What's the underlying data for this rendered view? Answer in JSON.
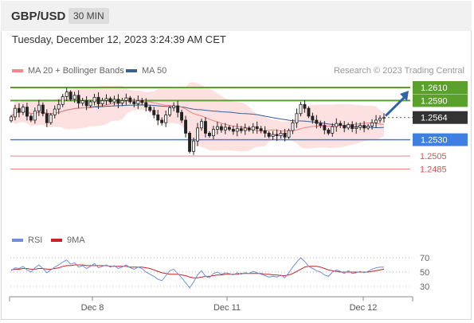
{
  "header": {
    "symbol": "GBP/USD",
    "timeframe": "30 MIN"
  },
  "timestamp": "Tuesday, December 12, 2023 3:24:39 AM CET",
  "legend": {
    "ma_bb": "MA 20 + Bollinger Bands",
    "ma50": "MA 50",
    "credit": "Research © 2023 Trading Central",
    "rsi": "RSI",
    "ma9": "9MA"
  },
  "colors": {
    "resistance": "#5aa02c",
    "support": "#3f7fe0",
    "support_minor": "#e05050",
    "bollinger": "#fde0e0",
    "ma20": "#f08080",
    "ma50": "#3a5f9a",
    "candle_up": "#ffffff",
    "candle_down": "#222222",
    "rsi": "#6f8fd8",
    "rsi_ma": "#cc2222",
    "arrow": "#2f62a8",
    "current_price": "#333333"
  },
  "chart_data": [
    {
      "type": "candlestick",
      "title": "GBP/USD 30 MIN",
      "x_ticks": [
        "Dec 8",
        "Dec 11",
        "Dec 12"
      ],
      "ylim": [
        1.2475,
        1.2625
      ],
      "current_price": 1.2564,
      "levels": [
        {
          "value": 1.261,
          "label": "1.2610",
          "kind": "resistance"
        },
        {
          "value": 1.259,
          "label": "1.2590",
          "kind": "resistance"
        },
        {
          "value": 1.253,
          "label": "1.2530",
          "kind": "support"
        },
        {
          "value": 1.2505,
          "label": "1.2505",
          "kind": "support_minor"
        },
        {
          "value": 1.2485,
          "label": "1.2485",
          "kind": "support_minor"
        }
      ],
      "projection": {
        "from": 1.2564,
        "to": 1.261,
        "direction": "up"
      },
      "closes": [
        1.2565,
        1.2578,
        1.2572,
        1.258,
        1.2566,
        1.256,
        1.2574,
        1.2583,
        1.257,
        1.2556,
        1.2568,
        1.2577,
        1.2584,
        1.2596,
        1.2603,
        1.2592,
        1.2598,
        1.2586,
        1.259,
        1.2582,
        1.2588,
        1.2595,
        1.2585,
        1.259,
        1.2593,
        1.2588,
        1.2592,
        1.2586,
        1.259,
        1.2594,
        1.2588,
        1.2585,
        1.259,
        1.2587,
        1.258,
        1.2575,
        1.2568,
        1.256,
        1.2556,
        1.2568,
        1.2579,
        1.2582,
        1.2572,
        1.256,
        1.254,
        1.2512,
        1.2528,
        1.2548,
        1.2558,
        1.254,
        1.2536,
        1.2546,
        1.255,
        1.2545,
        1.2549,
        1.2546,
        1.2543,
        1.2547,
        1.2544,
        1.2548,
        1.2545,
        1.255,
        1.2547,
        1.2544,
        1.254,
        1.2535,
        1.2538,
        1.2536,
        1.254,
        1.2534,
        1.2544,
        1.2556,
        1.257,
        1.2584,
        1.2578,
        1.2566,
        1.256,
        1.2555,
        1.2552,
        1.2545,
        1.254,
        1.255,
        1.2555,
        1.2552,
        1.2548,
        1.2553,
        1.2547,
        1.2549,
        1.2552,
        1.2548,
        1.2551,
        1.2556,
        1.256,
        1.2563,
        1.2564
      ]
    },
    {
      "type": "line",
      "title": "RSI",
      "series": [
        {
          "name": "RSI"
        },
        {
          "name": "9MA"
        }
      ],
      "y_ticks": [
        70,
        50,
        30
      ],
      "ylim": [
        20,
        80
      ],
      "rsi": [
        52,
        56,
        55,
        58,
        53,
        50,
        56,
        60,
        55,
        49,
        53,
        57,
        60,
        64,
        67,
        61,
        63,
        57,
        59,
        55,
        58,
        62,
        56,
        58,
        60,
        57,
        59,
        55,
        57,
        60,
        56,
        54,
        57,
        55,
        50,
        47,
        44,
        40,
        38,
        45,
        52,
        54,
        48,
        42,
        35,
        28,
        36,
        46,
        52,
        44,
        42,
        48,
        50,
        47,
        49,
        48,
        46,
        49,
        47,
        49,
        48,
        51,
        49,
        47,
        45,
        43,
        44,
        43,
        46,
        42,
        49,
        57,
        64,
        70,
        65,
        58,
        55,
        52,
        50,
        46,
        44,
        50,
        53,
        51,
        48,
        52,
        48,
        49,
        51,
        49,
        51,
        54,
        56,
        57,
        57
      ],
      "rsi_ma": [
        53,
        54,
        54,
        55,
        55,
        54,
        54,
        55,
        55,
        54,
        54,
        55,
        56,
        58,
        59,
        59,
        60,
        60,
        60,
        59,
        59,
        59,
        59,
        59,
        59,
        58,
        58,
        58,
        58,
        58,
        57,
        57,
        57,
        57,
        56,
        55,
        53,
        51,
        49,
        48,
        47,
        47,
        47,
        46,
        45,
        43,
        42,
        42,
        43,
        44,
        44,
        45,
        46,
        46,
        47,
        47,
        47,
        47,
        48,
        48,
        48,
        48,
        48,
        48,
        47,
        47,
        46,
        46,
        45,
        45,
        46,
        48,
        51,
        54,
        57,
        58,
        58,
        58,
        57,
        55,
        53,
        52,
        51,
        50,
        50,
        50,
        50,
        50,
        50,
        50,
        50,
        51,
        52,
        53,
        54
      ]
    }
  ]
}
